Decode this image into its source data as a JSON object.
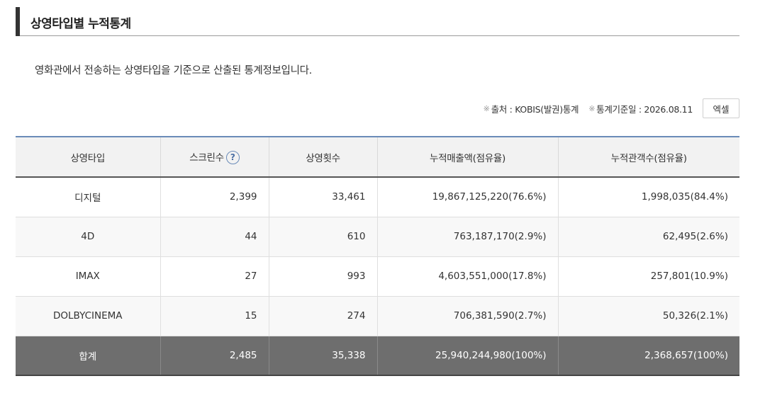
{
  "section": {
    "title": "상영타입별 누적통계",
    "description": "영화관에서 전송하는 상영타입을 기준으로 산출된 통계정보입니다."
  },
  "meta": {
    "mark": "※",
    "source": "출처 : KOBIS(발권)통계",
    "base_date": "통계기준일 : 2026.08.11",
    "excel_label": "엑셀"
  },
  "table": {
    "headers": {
      "type": "상영타입",
      "screens": "스크린수",
      "screens_help": "?",
      "shows": "상영횟수",
      "sales": "누적매출액(점유율)",
      "audience": "누적관객수(점유율)"
    },
    "rows": [
      {
        "type": "디지털",
        "screens": "2,399",
        "shows": "33,461",
        "sales": "19,867,125,220(76.6%)",
        "audience": "1,998,035(84.4%)"
      },
      {
        "type": "4D",
        "screens": "44",
        "shows": "610",
        "sales": "763,187,170(2.9%)",
        "audience": "62,495(2.6%)"
      },
      {
        "type": "IMAX",
        "screens": "27",
        "shows": "993",
        "sales": "4,603,551,000(17.8%)",
        "audience": "257,801(10.9%)"
      },
      {
        "type": "DOLBYCINEMA",
        "screens": "15",
        "shows": "274",
        "sales": "706,381,590(2.7%)",
        "audience": "50,326(2.1%)"
      }
    ],
    "total": {
      "type": "합계",
      "screens": "2,485",
      "shows": "35,338",
      "sales": "25,940,244,980(100%)",
      "audience": "2,368,657(100%)"
    }
  }
}
